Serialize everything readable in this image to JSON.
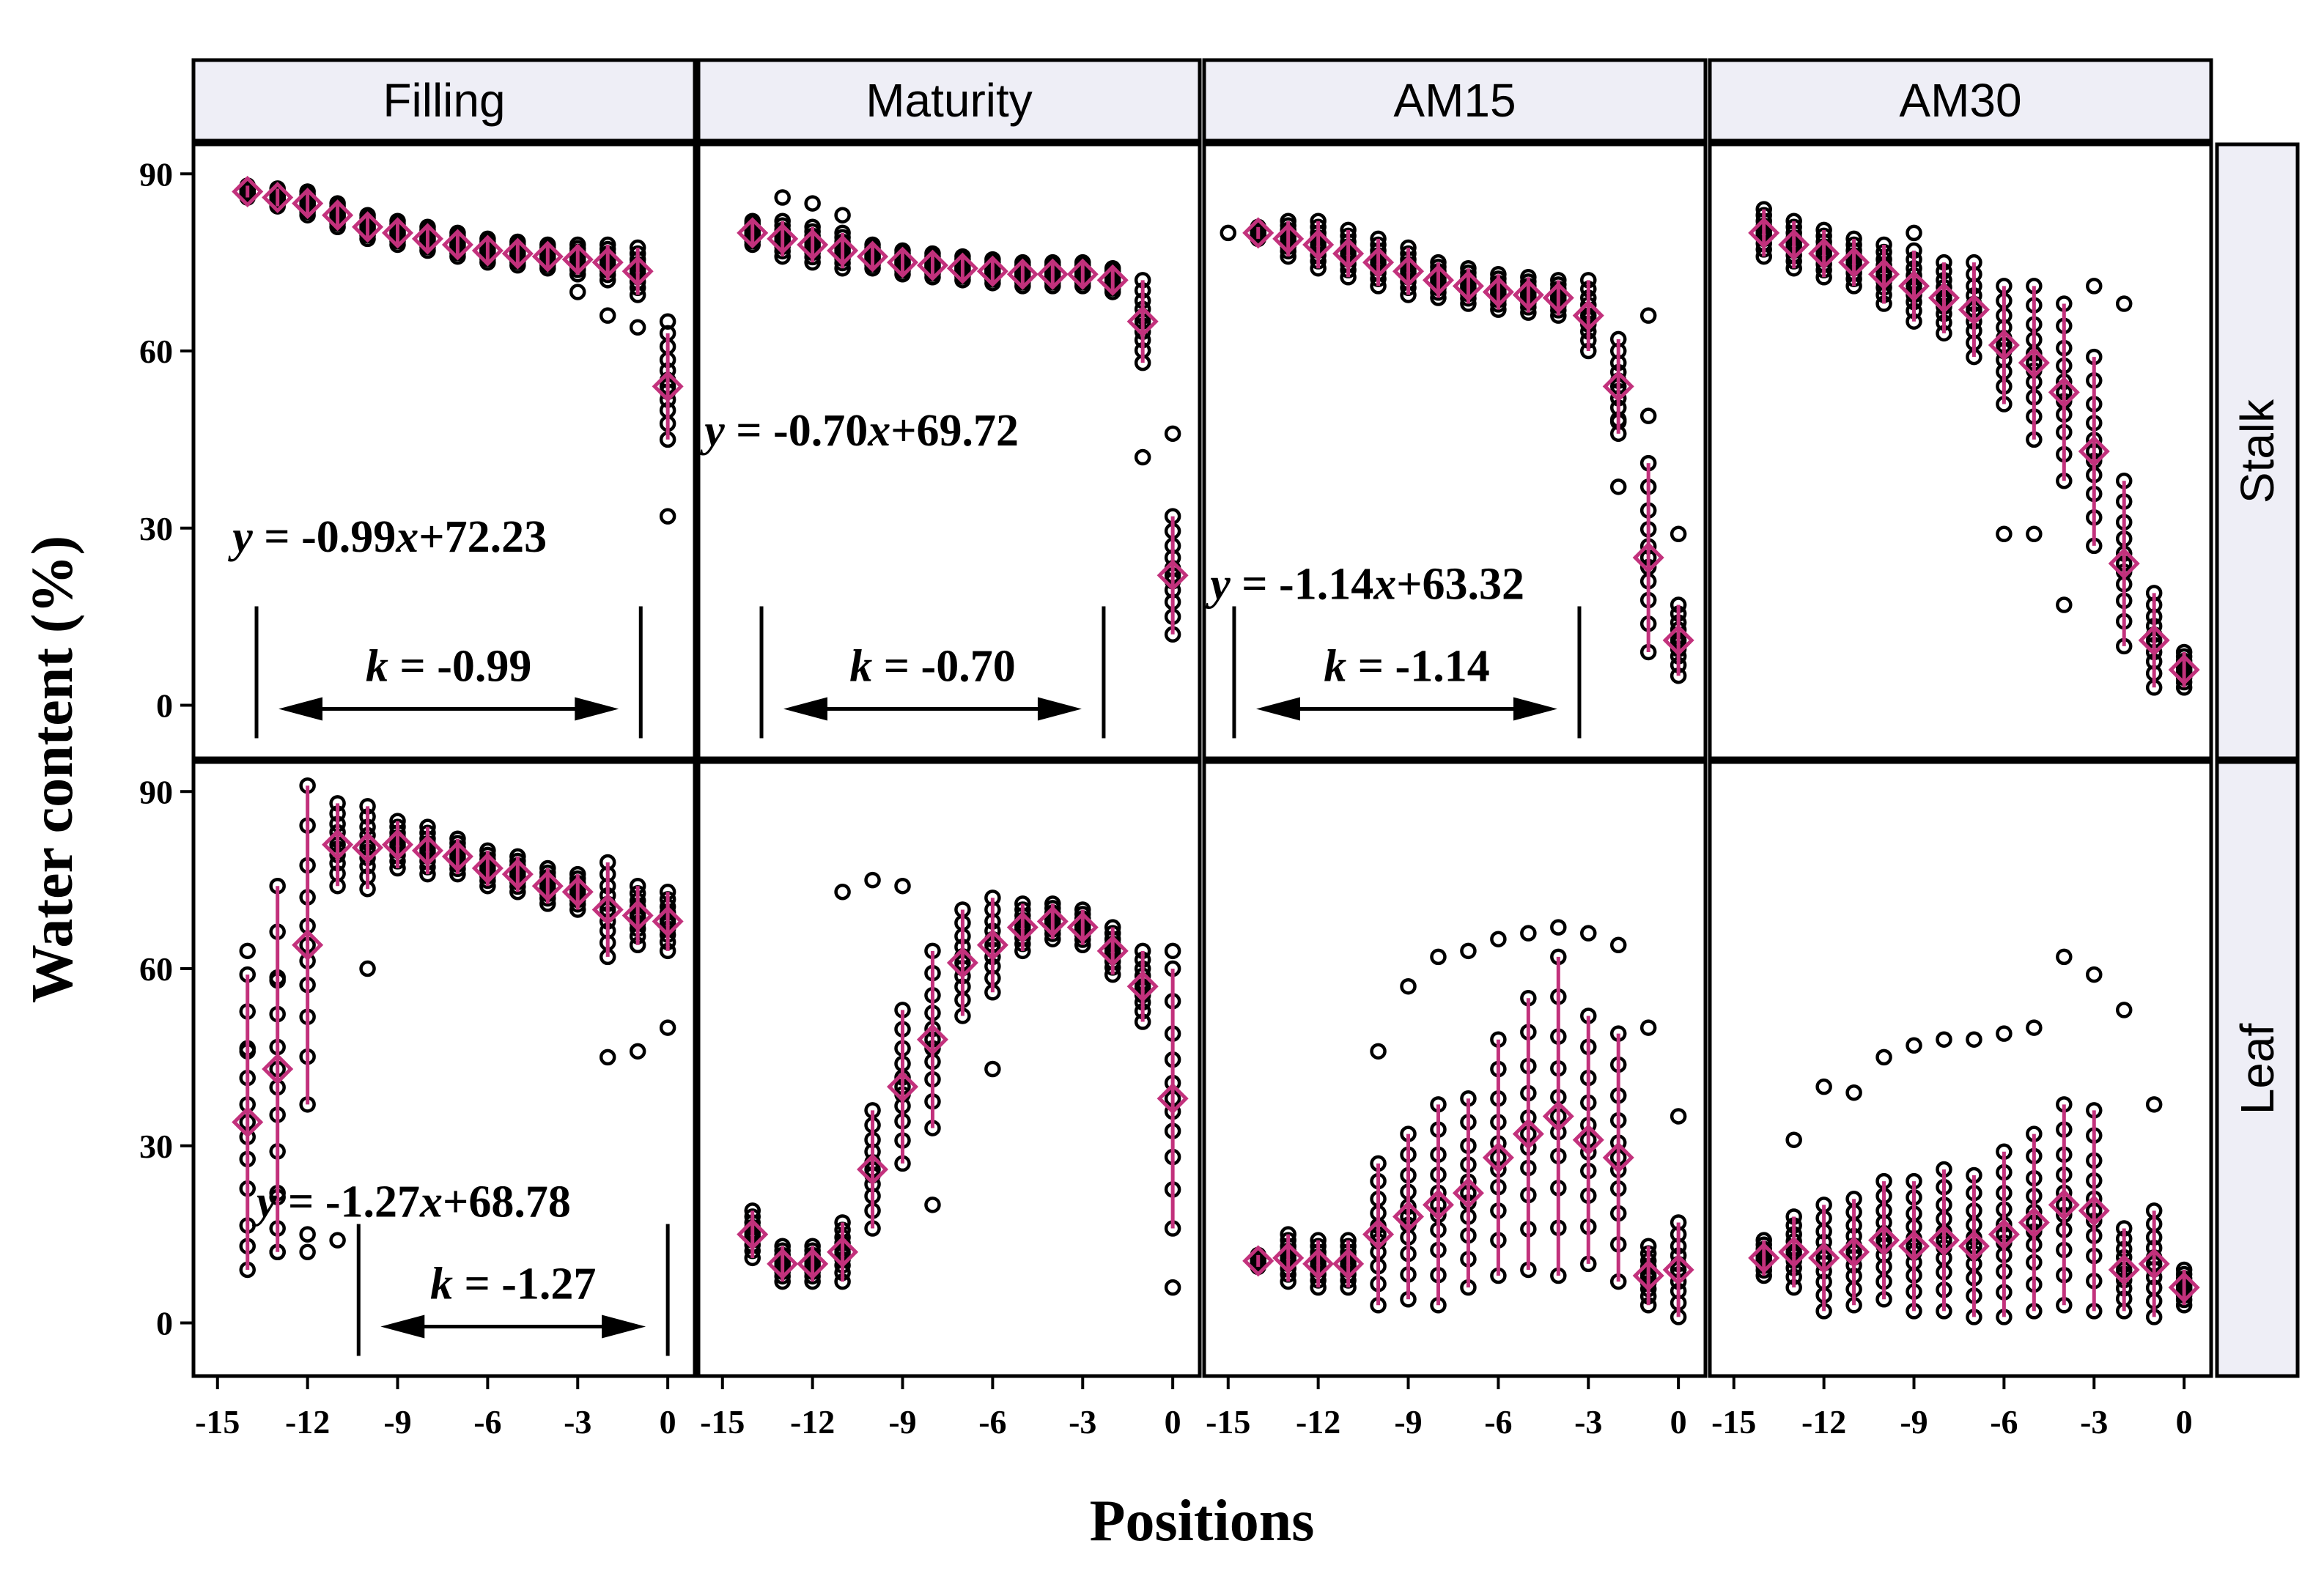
{
  "chart_data": {
    "type": "scatter",
    "xlabel": "Positions",
    "ylabel": "Water content (%)",
    "columns": [
      "Filling",
      "Maturity",
      "AM15",
      "AM30"
    ],
    "rows": [
      "Stalk",
      "Leaf"
    ],
    "xlim": [
      -15.8,
      0.9
    ],
    "ylim": [
      -9,
      95
    ],
    "xticks": [
      -15,
      -12,
      -9,
      -6,
      -3,
      0
    ],
    "xtick_labels": [
      "-15",
      "-12",
      "-9",
      "-6",
      "-3",
      "0"
    ],
    "yticks": [
      0,
      30,
      60,
      90
    ],
    "ytick_labels": [
      "0",
      "30",
      "60",
      "90"
    ],
    "series_style": {
      "points": "black open circles (individual measurements)",
      "means": "magenta open diamonds with error bars"
    },
    "colors": {
      "mean": "#c2317c",
      "strip": "#eeeef6",
      "points": "#000000"
    },
    "panels": [
      {
        "row": "Stalk",
        "column": "Filling",
        "equation": {
          "y": "y",
          "eq": " = -0.99",
          "x": "x",
          "rest": "+72.23"
        },
        "k": {
          "label": "k",
          "text": " = -0.99",
          "from": -13.7,
          "to": -0.9,
          "y": 0
        },
        "means": [
          {
            "x": -14,
            "y": 87,
            "sd": 1
          },
          {
            "x": -13,
            "y": 86,
            "sd": 1.5
          },
          {
            "x": -12,
            "y": 85,
            "sd": 2
          },
          {
            "x": -11,
            "y": 83,
            "sd": 2
          },
          {
            "x": -10,
            "y": 81,
            "sd": 2
          },
          {
            "x": -9,
            "y": 80,
            "sd": 2
          },
          {
            "x": -8,
            "y": 79,
            "sd": 2
          },
          {
            "x": -7,
            "y": 78,
            "sd": 2
          },
          {
            "x": -6,
            "y": 77,
            "sd": 2
          },
          {
            "x": -5,
            "y": 76.5,
            "sd": 2
          },
          {
            "x": -4,
            "y": 76,
            "sd": 2
          },
          {
            "x": -3,
            "y": 75.5,
            "sd": 2.5
          },
          {
            "x": -2,
            "y": 75,
            "sd": 3
          },
          {
            "x": -1,
            "y": 73.5,
            "sd": 4
          },
          {
            "x": 0,
            "y": 54,
            "sd": 9
          }
        ],
        "outliers": [
          {
            "x": -3,
            "y": 70
          },
          {
            "x": -2,
            "y": 66
          },
          {
            "x": -1,
            "y": 64
          },
          {
            "x": 0,
            "y": 32
          },
          {
            "x": 0,
            "y": 65
          }
        ]
      },
      {
        "row": "Stalk",
        "column": "Maturity",
        "equation": {
          "y": "y",
          "eq": " = -0.70",
          "x": "x",
          "rest": "+69.72"
        },
        "k": {
          "label": "k",
          "text": " = -0.70",
          "from": -13.7,
          "to": -2.3,
          "y": 0
        },
        "means": [
          {
            "x": -14,
            "y": 80,
            "sd": 2
          },
          {
            "x": -13,
            "y": 79,
            "sd": 3
          },
          {
            "x": -12,
            "y": 78,
            "sd": 3
          },
          {
            "x": -11,
            "y": 77,
            "sd": 3
          },
          {
            "x": -10,
            "y": 76,
            "sd": 2
          },
          {
            "x": -9,
            "y": 75,
            "sd": 2
          },
          {
            "x": -8,
            "y": 74.5,
            "sd": 2
          },
          {
            "x": -7,
            "y": 74,
            "sd": 2
          },
          {
            "x": -6,
            "y": 73.5,
            "sd": 2
          },
          {
            "x": -5,
            "y": 73,
            "sd": 2
          },
          {
            "x": -4,
            "y": 73,
            "sd": 2
          },
          {
            "x": -3,
            "y": 73,
            "sd": 2
          },
          {
            "x": -2,
            "y": 72,
            "sd": 2
          },
          {
            "x": -1,
            "y": 65,
            "sd": 7
          },
          {
            "x": 0,
            "y": 22,
            "sd": 10
          }
        ],
        "outliers": [
          {
            "x": -1,
            "y": 42
          },
          {
            "x": 0,
            "y": 46
          },
          {
            "x": -13,
            "y": 86
          },
          {
            "x": -12,
            "y": 85
          },
          {
            "x": -11,
            "y": 83
          }
        ]
      },
      {
        "row": "Stalk",
        "column": "AM15",
        "equation": {
          "y": "y",
          "eq": " = -1.14",
          "x": "x",
          "rest": "+63.32"
        },
        "k": {
          "label": "k",
          "text": " = -1.14",
          "from": -14.8,
          "to": -3.3,
          "y": 0
        },
        "means": [
          {
            "x": -14,
            "y": 80,
            "sd": 1
          },
          {
            "x": -13,
            "y": 79,
            "sd": 3
          },
          {
            "x": -12,
            "y": 78,
            "sd": 4
          },
          {
            "x": -11,
            "y": 76.5,
            "sd": 4
          },
          {
            "x": -10,
            "y": 75,
            "sd": 4
          },
          {
            "x": -9,
            "y": 73.5,
            "sd": 4
          },
          {
            "x": -8,
            "y": 72,
            "sd": 3
          },
          {
            "x": -7,
            "y": 71,
            "sd": 3
          },
          {
            "x": -6,
            "y": 70,
            "sd": 3
          },
          {
            "x": -5,
            "y": 69.5,
            "sd": 3
          },
          {
            "x": -4,
            "y": 69,
            "sd": 3
          },
          {
            "x": -3,
            "y": 66,
            "sd": 6
          },
          {
            "x": -2,
            "y": 54,
            "sd": 8
          },
          {
            "x": -1,
            "y": 25,
            "sd": 16
          },
          {
            "x": 0,
            "y": 11,
            "sd": 6
          }
        ],
        "outliers": [
          {
            "x": -15,
            "y": 80
          },
          {
            "x": -1,
            "y": 66
          },
          {
            "x": -2,
            "y": 48
          },
          {
            "x": -1,
            "y": 49
          },
          {
            "x": 0,
            "y": 29
          },
          {
            "x": -2,
            "y": 37
          }
        ]
      },
      {
        "row": "Stalk",
        "column": "AM30",
        "equation": null,
        "k": null,
        "means": [
          {
            "x": -14,
            "y": 80,
            "sd": 4
          },
          {
            "x": -13,
            "y": 78,
            "sd": 4
          },
          {
            "x": -12,
            "y": 76.5,
            "sd": 4
          },
          {
            "x": -11,
            "y": 75,
            "sd": 4
          },
          {
            "x": -10,
            "y": 73,
            "sd": 5
          },
          {
            "x": -9,
            "y": 71,
            "sd": 6
          },
          {
            "x": -8,
            "y": 69,
            "sd": 6
          },
          {
            "x": -7,
            "y": 67,
            "sd": 8
          },
          {
            "x": -6,
            "y": 61,
            "sd": 10
          },
          {
            "x": -5,
            "y": 58,
            "sd": 13
          },
          {
            "x": -4,
            "y": 53,
            "sd": 15
          },
          {
            "x": -3,
            "y": 43,
            "sd": 16
          },
          {
            "x": -2,
            "y": 24,
            "sd": 14
          },
          {
            "x": -1,
            "y": 11,
            "sd": 8
          },
          {
            "x": 0,
            "y": 6,
            "sd": 3
          }
        ],
        "outliers": [
          {
            "x": -6,
            "y": 29
          },
          {
            "x": -5,
            "y": 29
          },
          {
            "x": -4,
            "y": 17
          },
          {
            "x": -2,
            "y": 68
          },
          {
            "x": -3,
            "y": 71
          },
          {
            "x": -9,
            "y": 80
          }
        ]
      },
      {
        "row": "Leaf",
        "column": "Filling",
        "equation": {
          "y": "y",
          "eq": " = -1.27",
          "x": "x",
          "rest": "+68.78"
        },
        "k": {
          "label": "k",
          "text": " = -1.27",
          "from": -10.3,
          "to": 0,
          "y": 0
        },
        "means": [
          {
            "x": -14,
            "y": 34,
            "sd": 25
          },
          {
            "x": -13,
            "y": 43,
            "sd": 31
          },
          {
            "x": -12,
            "y": 64,
            "sd": 27
          },
          {
            "x": -11,
            "y": 81,
            "sd": 7
          },
          {
            "x": -10,
            "y": 80.5,
            "sd": 7
          },
          {
            "x": -9,
            "y": 81,
            "sd": 4
          },
          {
            "x": -8,
            "y": 80,
            "sd": 4
          },
          {
            "x": -7,
            "y": 79,
            "sd": 3
          },
          {
            "x": -6,
            "y": 77,
            "sd": 3
          },
          {
            "x": -5,
            "y": 76,
            "sd": 3
          },
          {
            "x": -4,
            "y": 74,
            "sd": 3
          },
          {
            "x": -3,
            "y": 73,
            "sd": 3
          },
          {
            "x": -2,
            "y": 70,
            "sd": 8
          },
          {
            "x": -1,
            "y": 69,
            "sd": 5
          },
          {
            "x": 0,
            "y": 68,
            "sd": 5
          }
        ],
        "outliers": [
          {
            "x": -14,
            "y": 63
          },
          {
            "x": -14,
            "y": 46
          },
          {
            "x": -14,
            "y": 13
          },
          {
            "x": -13,
            "y": 58
          },
          {
            "x": -13,
            "y": 22
          },
          {
            "x": -13,
            "y": 16
          },
          {
            "x": -13,
            "y": 12
          },
          {
            "x": -12,
            "y": 15
          },
          {
            "x": -12,
            "y": 12
          },
          {
            "x": -11,
            "y": 14
          },
          {
            "x": -10,
            "y": 60
          },
          {
            "x": -2,
            "y": 45
          },
          {
            "x": -1,
            "y": 46
          },
          {
            "x": 0,
            "y": 50
          }
        ]
      },
      {
        "row": "Leaf",
        "column": "Maturity",
        "equation": null,
        "k": null,
        "means": [
          {
            "x": -14,
            "y": 15,
            "sd": 4
          },
          {
            "x": -13,
            "y": 10,
            "sd": 3
          },
          {
            "x": -12,
            "y": 10,
            "sd": 3
          },
          {
            "x": -11,
            "y": 12,
            "sd": 5
          },
          {
            "x": -10,
            "y": 26,
            "sd": 10
          },
          {
            "x": -9,
            "y": 40,
            "sd": 13
          },
          {
            "x": -8,
            "y": 48,
            "sd": 15
          },
          {
            "x": -7,
            "y": 61,
            "sd": 9
          },
          {
            "x": -6,
            "y": 64,
            "sd": 8
          },
          {
            "x": -5,
            "y": 67,
            "sd": 4
          },
          {
            "x": -4,
            "y": 68,
            "sd": 3
          },
          {
            "x": -3,
            "y": 67,
            "sd": 3
          },
          {
            "x": -2,
            "y": 63,
            "sd": 4
          },
          {
            "x": -1,
            "y": 57,
            "sd": 6
          },
          {
            "x": 0,
            "y": 38,
            "sd": 22
          }
        ],
        "outliers": [
          {
            "x": -11,
            "y": 73
          },
          {
            "x": -10,
            "y": 75
          },
          {
            "x": -9,
            "y": 74
          },
          {
            "x": -6,
            "y": 43
          },
          {
            "x": -8,
            "y": 20
          },
          {
            "x": 0,
            "y": 6
          },
          {
            "x": 0,
            "y": 63
          }
        ]
      },
      {
        "row": "Leaf",
        "column": "AM15",
        "equation": null,
        "k": null,
        "means": [
          {
            "x": -14,
            "y": 10.5,
            "sd": 1
          },
          {
            "x": -13,
            "y": 11,
            "sd": 4
          },
          {
            "x": -12,
            "y": 10,
            "sd": 4
          },
          {
            "x": -11,
            "y": 10,
            "sd": 4
          },
          {
            "x": -10,
            "y": 15,
            "sd": 12
          },
          {
            "x": -9,
            "y": 18,
            "sd": 14
          },
          {
            "x": -8,
            "y": 20,
            "sd": 17
          },
          {
            "x": -7,
            "y": 22,
            "sd": 16
          },
          {
            "x": -6,
            "y": 28,
            "sd": 20
          },
          {
            "x": -5,
            "y": 32,
            "sd": 23
          },
          {
            "x": -4,
            "y": 35,
            "sd": 27
          },
          {
            "x": -3,
            "y": 31,
            "sd": 21
          },
          {
            "x": -2,
            "y": 28,
            "sd": 21
          },
          {
            "x": -1,
            "y": 8,
            "sd": 5
          },
          {
            "x": 0,
            "y": 9,
            "sd": 8
          }
        ],
        "outliers": [
          {
            "x": -10,
            "y": 46
          },
          {
            "x": -9,
            "y": 57
          },
          {
            "x": -8,
            "y": 62
          },
          {
            "x": -7,
            "y": 63
          },
          {
            "x": -6,
            "y": 65
          },
          {
            "x": -5,
            "y": 66
          },
          {
            "x": -4,
            "y": 67
          },
          {
            "x": -3,
            "y": 66
          },
          {
            "x": -2,
            "y": 64
          },
          {
            "x": -1,
            "y": 50
          },
          {
            "x": 0,
            "y": 35
          }
        ]
      },
      {
        "row": "Leaf",
        "column": "AM30",
        "equation": null,
        "k": null,
        "means": [
          {
            "x": -14,
            "y": 11,
            "sd": 3
          },
          {
            "x": -13,
            "y": 12,
            "sd": 6
          },
          {
            "x": -12,
            "y": 11,
            "sd": 9
          },
          {
            "x": -11,
            "y": 12,
            "sd": 9
          },
          {
            "x": -10,
            "y": 14,
            "sd": 10
          },
          {
            "x": -9,
            "y": 13,
            "sd": 11
          },
          {
            "x": -8,
            "y": 14,
            "sd": 12
          },
          {
            "x": -7,
            "y": 13,
            "sd": 12
          },
          {
            "x": -6,
            "y": 15,
            "sd": 14
          },
          {
            "x": -5,
            "y": 17,
            "sd": 15
          },
          {
            "x": -4,
            "y": 20,
            "sd": 17
          },
          {
            "x": -3,
            "y": 19,
            "sd": 17
          },
          {
            "x": -2,
            "y": 9,
            "sd": 7
          },
          {
            "x": -1,
            "y": 10,
            "sd": 9
          },
          {
            "x": 0,
            "y": 6,
            "sd": 3
          }
        ],
        "outliers": [
          {
            "x": -13,
            "y": 31
          },
          {
            "x": -12,
            "y": 40
          },
          {
            "x": -11,
            "y": 39
          },
          {
            "x": -10,
            "y": 45
          },
          {
            "x": -9,
            "y": 47
          },
          {
            "x": -8,
            "y": 48
          },
          {
            "x": -7,
            "y": 48
          },
          {
            "x": -6,
            "y": 49
          },
          {
            "x": -5,
            "y": 50
          },
          {
            "x": -4,
            "y": 62
          },
          {
            "x": -3,
            "y": 59
          },
          {
            "x": -2,
            "y": 53
          },
          {
            "x": -1,
            "y": 37
          }
        ]
      }
    ]
  }
}
